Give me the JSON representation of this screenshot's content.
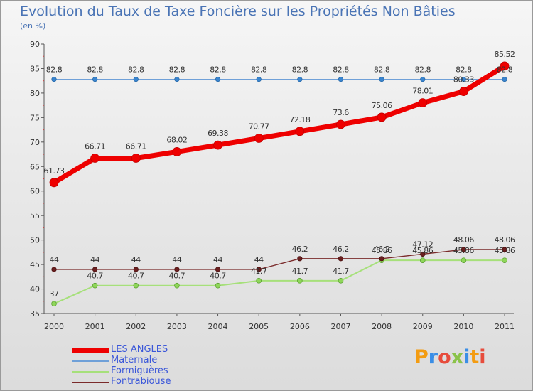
{
  "title": "Evolution du Taux de Taxe Foncière sur les Propriétés Non Bâties",
  "subtitle": "(en %)",
  "logo": {
    "text": "Proxiti",
    "colors": [
      "#f39c12",
      "#3a8ee6",
      "#e74c3c",
      "#8bc34a",
      "#3a8ee6",
      "#f39c12",
      "#e74c3c"
    ]
  },
  "chart_data": {
    "type": "line",
    "title": "Evolution du Taux de Taxe Foncière sur les Propriétés Non Bâties",
    "ylabel": "(en %)",
    "xlabel": "",
    "ylim": [
      35,
      90
    ],
    "yticks": [
      35,
      40,
      45,
      50,
      55,
      60,
      65,
      70,
      75,
      80,
      85,
      90
    ],
    "categories": [
      "2000",
      "2001",
      "2002",
      "2003",
      "2004",
      "2005",
      "2006",
      "2007",
      "2008",
      "2009",
      "2010",
      "2011"
    ],
    "grid": false,
    "legend": "bottom-left",
    "series": [
      {
        "name": "LES ANGLES",
        "color": "#ee0000",
        "values": [
          61.73,
          66.71,
          66.71,
          68.02,
          69.38,
          70.77,
          72.18,
          73.6,
          75.06,
          78.01,
          80.33,
          85.52
        ],
        "labels": [
          "61.73",
          "66.71",
          "66.71",
          "68.02",
          "69.38",
          "70.77",
          "72.18",
          "73.6",
          "75.06",
          "78.01",
          "80.33",
          "85.52"
        ]
      },
      {
        "name": "Maternale",
        "color": "#6fa0d8",
        "values": [
          82.8,
          82.8,
          82.8,
          82.8,
          82.8,
          82.8,
          82.8,
          82.8,
          82.8,
          82.8,
          82.8,
          82.8
        ],
        "labels": [
          "82.8",
          "82.8",
          "82.8",
          "82.8",
          "82.8",
          "82.8",
          "82.8",
          "82.8",
          "82.8",
          "82.8",
          "82.8",
          "82.8"
        ]
      },
      {
        "name": "Formiguères",
        "color": "#a6e07a",
        "values": [
          37,
          40.7,
          40.7,
          40.7,
          40.7,
          41.7,
          41.7,
          41.7,
          45.86,
          45.86,
          45.86,
          45.86
        ],
        "labels": [
          "37",
          "40.7",
          "40.7",
          "40.7",
          "40.7",
          "41.7",
          "41.7",
          "41.7",
          "45.86",
          "45.86",
          "45.86",
          "45.86"
        ]
      },
      {
        "name": "Fontrabiouse",
        "color": "#7a2a2a",
        "values": [
          44,
          44,
          44,
          44,
          44,
          44,
          46.2,
          46.2,
          46.2,
          47.12,
          48.06,
          48.06
        ],
        "labels": [
          "44",
          "44",
          "44",
          "44",
          "44",
          "44",
          "46.2",
          "46.2",
          "46.2",
          "47.12",
          "48.06",
          "48.06"
        ]
      }
    ]
  }
}
